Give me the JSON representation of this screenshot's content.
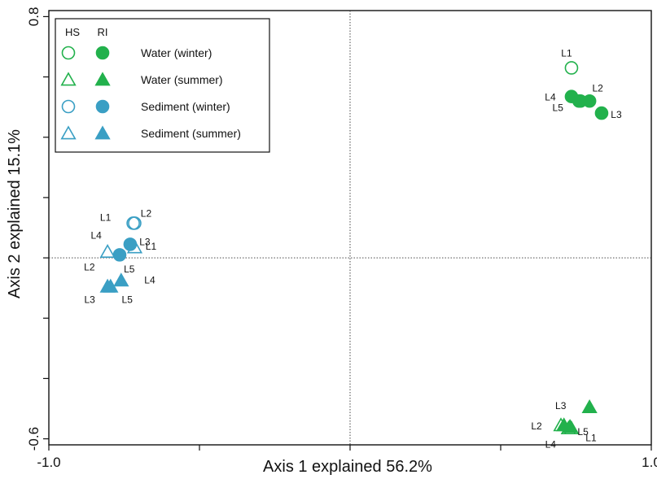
{
  "chart_data": {
    "type": "scatter",
    "xlabel": "Axis 1 explained 56.2%",
    "ylabel": "Axis 2 explained 15.1%",
    "xlim": [
      -1.0,
      1.0
    ],
    "ylim": [
      -0.62,
      0.82
    ],
    "x_ticks": [
      -1.0,
      -0.5,
      0.0,
      0.5,
      1.0
    ],
    "x_tick_labels": [
      "-1.0",
      "",
      "",
      "",
      "1.0"
    ],
    "y_ticks": [
      0.8,
      0.6,
      0.4,
      0.2,
      0.0,
      -0.2,
      -0.4,
      -0.6
    ],
    "y_tick_labels": [
      "0.8",
      "",
      "",
      "",
      "",
      "",
      "",
      "-0.6"
    ],
    "zero_lines": {
      "x": 0.0,
      "y": 0.0,
      "style": "dotted"
    },
    "grid": false,
    "legend": {
      "placement": "top-left",
      "column_headers": [
        "HS",
        "RI"
      ],
      "entries": [
        {
          "label": "Water (winter)",
          "color": "#22b14c",
          "marker": "circle"
        },
        {
          "label": "Water (summer)",
          "color": "#22b14c",
          "marker": "triangle"
        },
        {
          "label": "Sediment (winter)",
          "color": "#3a9fc4",
          "marker": "circle"
        },
        {
          "label": "Sediment (summer)",
          "color": "#3a9fc4",
          "marker": "triangle"
        }
      ]
    },
    "series": [
      {
        "name": "Water (winter) HS",
        "color": "#22b14c",
        "marker": "circle",
        "filled": false,
        "points": [
          {
            "x": 0.735,
            "y": 0.63,
            "label": "L1"
          },
          {
            "x": 0.765,
            "y": 0.52,
            "label": ""
          }
        ]
      },
      {
        "name": "Water (winter) RI",
        "color": "#22b14c",
        "marker": "circle",
        "filled": true,
        "points": [
          {
            "x": 0.735,
            "y": 0.535,
            "label": "L4"
          },
          {
            "x": 0.795,
            "y": 0.52,
            "label": "L2"
          },
          {
            "x": 0.835,
            "y": 0.48,
            "label": "L3"
          },
          {
            "x": 0.76,
            "y": 0.52,
            "label": "L5"
          }
        ]
      },
      {
        "name": "Water (summer) HS",
        "color": "#22b14c",
        "marker": "triangle",
        "filled": false,
        "points": [
          {
            "x": 0.7,
            "y": -0.555,
            "label": "L2"
          },
          {
            "x": 0.725,
            "y": -0.565,
            "label": "L4"
          },
          {
            "x": 0.735,
            "y": -0.565,
            "label": "L1"
          }
        ]
      },
      {
        "name": "Water (summer) RI",
        "color": "#22b14c",
        "marker": "triangle",
        "filled": true,
        "points": [
          {
            "x": 0.795,
            "y": -0.495,
            "label": ""
          },
          {
            "x": 0.71,
            "y": -0.555,
            "label": "L3"
          },
          {
            "x": 0.73,
            "y": -0.56,
            "label": "L5"
          }
        ]
      },
      {
        "name": "Sediment (winter) HS",
        "color": "#3a9fc4",
        "marker": "circle",
        "filled": false,
        "points": [
          {
            "x": -0.72,
            "y": 0.115,
            "label": "L1"
          },
          {
            "x": -0.715,
            "y": 0.115,
            "label": "L2"
          }
        ]
      },
      {
        "name": "Sediment (winter) RI",
        "color": "#3a9fc4",
        "marker": "circle",
        "filled": true,
        "points": [
          {
            "x": -0.73,
            "y": 0.045,
            "label": "L3"
          },
          {
            "x": -0.765,
            "y": 0.01,
            "label": ""
          }
        ]
      },
      {
        "name": "Sediment (summer) HS",
        "color": "#3a9fc4",
        "marker": "triangle",
        "filled": false,
        "points": [
          {
            "x": -0.805,
            "y": 0.02,
            "label": "L4"
          },
          {
            "x": -0.715,
            "y": 0.035,
            "label": "L1"
          }
        ]
      },
      {
        "name": "Sediment (summer) RI",
        "color": "#3a9fc4",
        "marker": "triangle",
        "filled": true,
        "points": [
          {
            "x": -0.76,
            "y": -0.075,
            "label": "L5"
          },
          {
            "x": -0.795,
            "y": -0.095,
            "label": "L2"
          },
          {
            "x": -0.805,
            "y": -0.095,
            "label": "L3"
          }
        ]
      }
    ],
    "extra_labels": [
      {
        "text": "L5",
        "x": -0.74,
        "y": -0.15
      },
      {
        "text": "L4",
        "x": -0.665,
        "y": -0.085
      }
    ]
  }
}
